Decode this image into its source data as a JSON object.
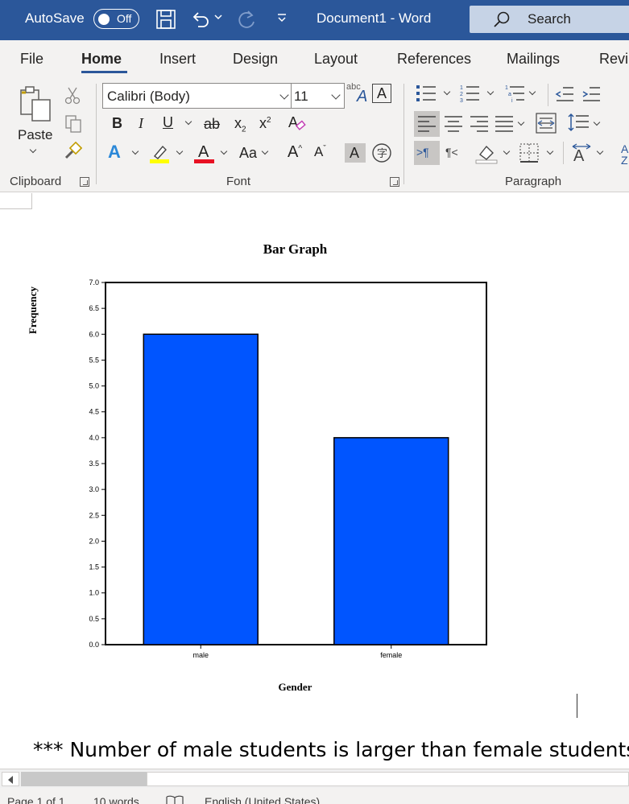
{
  "titlebar": {
    "autosave_label": "AutoSave",
    "autosave_state": "Off",
    "doc_title": "Document1  -  Word",
    "search_label": "Search",
    "bg_color": "#2b579a"
  },
  "tabs": [
    "File",
    "Home",
    "Insert",
    "Design",
    "Layout",
    "References",
    "Mailings",
    "Revi"
  ],
  "active_tab": "Home",
  "ribbon": {
    "paste_label": "Paste",
    "font_name": "Calibri (Body)",
    "font_size": "11",
    "groups": [
      "Clipboard",
      "Font",
      "Paragraph"
    ]
  },
  "document": {
    "note": "*** Number of male students is larger than female students"
  },
  "chart_data": {
    "type": "bar",
    "title": "Bar Graph",
    "xlabel": "Gender",
    "ylabel": "Frequency",
    "categories": [
      "male",
      "female"
    ],
    "values": [
      6,
      4
    ],
    "ylim": [
      0,
      7
    ],
    "yticks": [
      "0.0",
      "0.5",
      "1.0",
      "1.5",
      "2.0",
      "2.5",
      "3.0",
      "3.5",
      "4.0",
      "4.5",
      "5.0",
      "5.5",
      "6.0",
      "6.5",
      "7.0"
    ],
    "bar_color": "#0055ff",
    "grid": false
  },
  "statusbar": {
    "page": "Page 1 of 1",
    "words": "10 words",
    "language": "English (United States)"
  }
}
